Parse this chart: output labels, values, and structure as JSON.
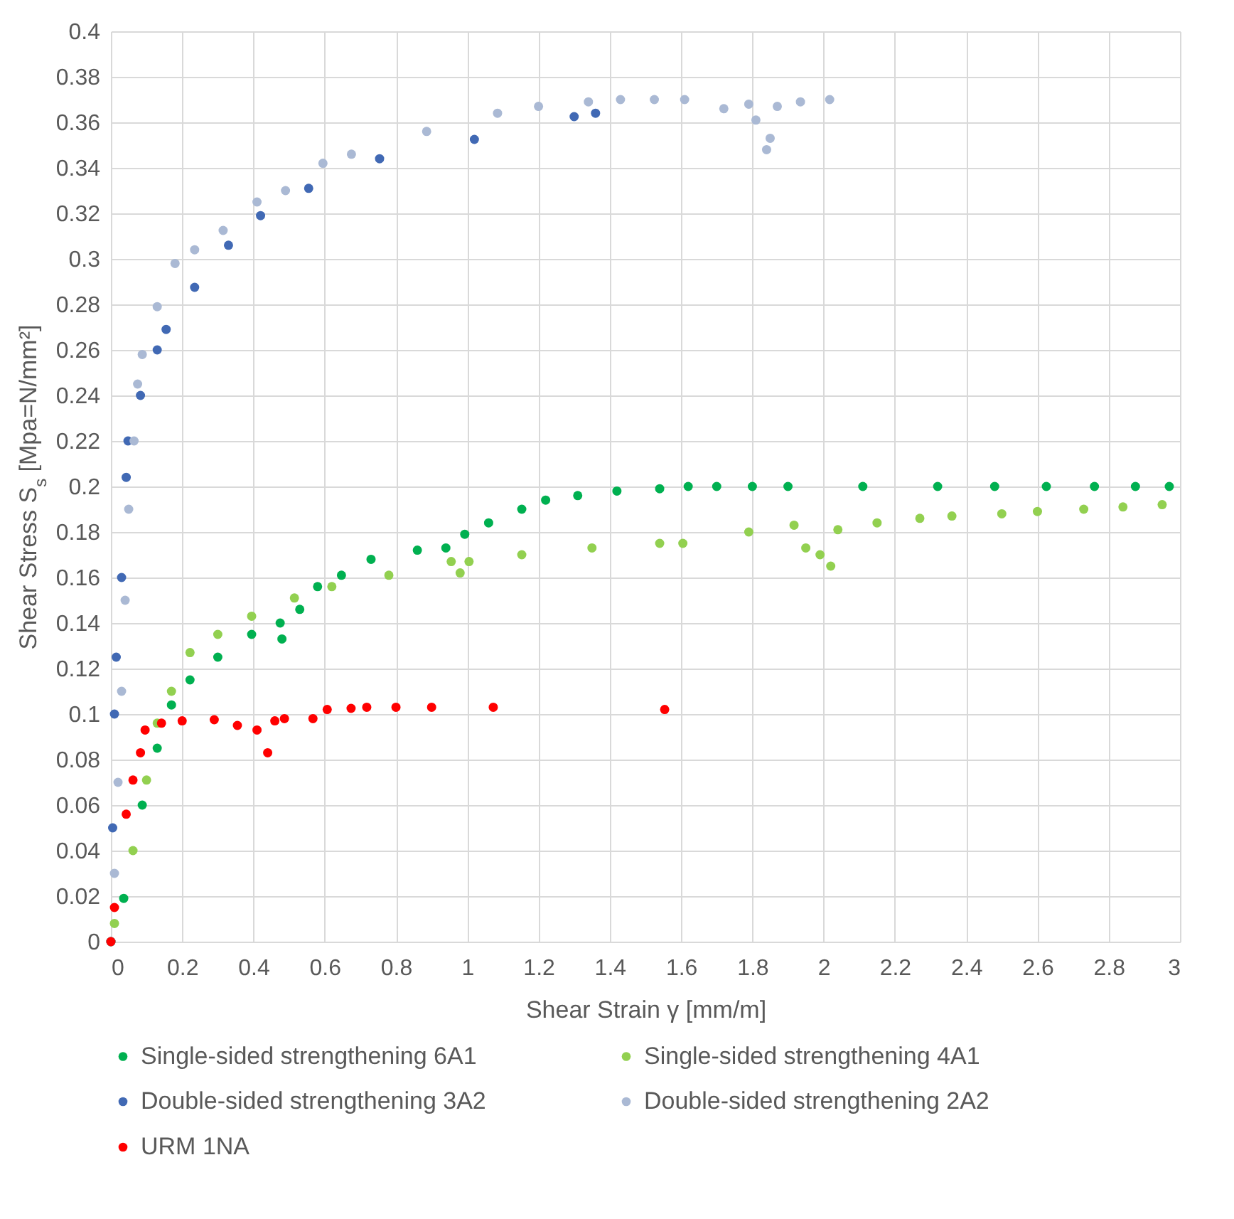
{
  "chart_data": {
    "type": "scatter",
    "xlabel": "Shear Strain γ [mm/m]",
    "ylabel": "Shear Stress S$_{s}$ [Mpa=N/mm²]",
    "xlim": [
      0,
      3
    ],
    "xticks": [
      0,
      0.2,
      0.4,
      0.6,
      0.8,
      1,
      1.2,
      1.4,
      1.6,
      1.8,
      2,
      2.2,
      2.4,
      2.6,
      2.8,
      3
    ],
    "ylim": [
      0,
      0.4
    ],
    "yticks": [
      0,
      0.02,
      0.04,
      0.06,
      0.08,
      0.1,
      0.12,
      0.14,
      0.16,
      0.18,
      0.2,
      0.22,
      0.24,
      0.26,
      0.28,
      0.3,
      0.32,
      0.34,
      0.36,
      0.38,
      0.4
    ],
    "grid": true,
    "legend": "bottom",
    "marker": "circle",
    "series": [
      {
        "name": "Single-sided strengthening 6A1",
        "color": "#00b050",
        "x": [
          0,
          0.036,
          0.088,
          0.13,
          0.17,
          0.222,
          0.3,
          0.395,
          0.475,
          0.48,
          0.53,
          0.58,
          0.647,
          0.73,
          0.86,
          0.94,
          0.993,
          1.06,
          1.153,
          1.22,
          1.31,
          1.42,
          1.54,
          1.62,
          1.7,
          1.8,
          1.9,
          2.11,
          2.32,
          2.48,
          2.625,
          2.76,
          2.875,
          2.97
        ],
        "values": [
          0,
          0.019,
          0.06,
          0.085,
          0.104,
          0.115,
          0.125,
          0.135,
          0.14,
          0.133,
          0.146,
          0.156,
          0.161,
          0.168,
          0.172,
          0.173,
          0.179,
          0.184,
          0.19,
          0.194,
          0.196,
          0.198,
          0.199,
          0.2,
          0.2,
          0.2,
          0.2,
          0.2,
          0.2,
          0.2,
          0.2,
          0.2,
          0.2,
          0.2
        ]
      },
      {
        "name": "Single-sided strengthening 4A1",
        "color": "#92d050",
        "x": [
          0,
          0.01,
          0.062,
          0.1,
          0.13,
          0.17,
          0.222,
          0.3,
          0.395,
          0.515,
          0.62,
          0.78,
          0.955,
          0.98,
          1.005,
          1.153,
          1.35,
          1.54,
          1.605,
          1.79,
          1.917,
          1.95,
          1.99,
          2.02,
          2.04,
          2.15,
          2.27,
          2.36,
          2.5,
          2.6,
          2.73,
          2.84,
          2.95
        ],
        "values": [
          0,
          0.008,
          0.04,
          0.071,
          0.096,
          0.11,
          0.127,
          0.135,
          0.143,
          0.151,
          0.156,
          0.161,
          0.167,
          0.162,
          0.167,
          0.17,
          0.173,
          0.175,
          0.175,
          0.18,
          0.183,
          0.173,
          0.17,
          0.165,
          0.181,
          0.184,
          0.186,
          0.187,
          0.188,
          0.189,
          0.19,
          0.191,
          0.192
        ]
      },
      {
        "name": "Double-sided strengthening 3A2",
        "color": "#4169b4",
        "x": [
          0,
          0.005,
          0.01,
          0.015,
          0.03,
          0.043,
          0.048,
          0.083,
          0.13,
          0.155,
          0.235,
          0.33,
          0.42,
          0.555,
          0.754,
          1.02,
          1.3,
          1.36
        ],
        "values": [
          0,
          0.05,
          0.1,
          0.125,
          0.16,
          0.204,
          0.22,
          0.24,
          0.26,
          0.269,
          0.2875,
          0.306,
          0.319,
          0.331,
          0.344,
          0.3525,
          0.3625,
          0.364
        ]
      },
      {
        "name": "Double-sided strengthening 2A2",
        "color": "#aab9d4",
        "x": [
          0,
          0.01,
          0.02,
          0.03,
          0.04,
          0.05,
          0.065,
          0.075,
          0.088,
          0.13,
          0.18,
          0.235,
          0.315,
          0.41,
          0.49,
          0.595,
          0.675,
          0.886,
          1.085,
          1.2,
          1.34,
          1.43,
          1.525,
          1.61,
          1.72,
          1.79,
          1.81,
          1.84,
          1.85,
          1.87,
          1.935,
          2.017
        ],
        "values": [
          0,
          0.03,
          0.07,
          0.11,
          0.15,
          0.19,
          0.22,
          0.245,
          0.258,
          0.279,
          0.298,
          0.304,
          0.3125,
          0.325,
          0.33,
          0.342,
          0.346,
          0.356,
          0.364,
          0.367,
          0.369,
          0.37,
          0.37,
          0.37,
          0.366,
          0.368,
          0.361,
          0.348,
          0.353,
          0.367,
          0.369,
          0.37
        ]
      },
      {
        "name": "URM 1NA",
        "color": "#ff0000",
        "x": [
          0,
          0.01,
          0.043,
          0.062,
          0.083,
          0.096,
          0.142,
          0.2,
          0.29,
          0.355,
          0.41,
          0.44,
          0.46,
          0.487,
          0.567,
          0.607,
          0.674,
          0.718,
          0.8,
          0.9,
          1.073,
          1.554
        ],
        "values": [
          0,
          0.015,
          0.056,
          0.071,
          0.083,
          0.093,
          0.096,
          0.097,
          0.0975,
          0.095,
          0.093,
          0.083,
          0.097,
          0.098,
          0.098,
          0.102,
          0.1025,
          0.103,
          0.103,
          0.103,
          0.103,
          0.102
        ]
      }
    ]
  }
}
